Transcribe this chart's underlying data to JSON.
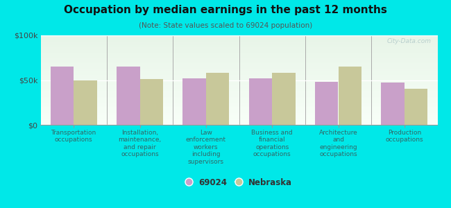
{
  "title": "Occupation by median earnings in the past 12 months",
  "subtitle": "(Note: State values scaled to 69024 population)",
  "categories": [
    "Transportation\noccupations",
    "Installation,\nmaintenance,\nand repair\noccupations",
    "Law\nenforcement\nworkers\nincluding\nsupervisors",
    "Business and\nfinancial\noperations\noccupations",
    "Architecture\nand\nengineering\noccupations",
    "Production\noccupations"
  ],
  "values_69024": [
    65000,
    65000,
    52000,
    52000,
    48000,
    47000
  ],
  "values_nebraska": [
    50000,
    51000,
    58000,
    58000,
    65000,
    40000
  ],
  "color_69024": "#c9a0c9",
  "color_nebraska": "#c8c89a",
  "ylim": [
    0,
    100000
  ],
  "ytick_labels": [
    "$0",
    "$50k",
    "$100k"
  ],
  "background_color": "#00e8e8",
  "legend_label_69024": "69024",
  "legend_label_nebraska": "Nebraska",
  "bar_width": 0.35,
  "title_color": "#111111",
  "subtitle_color": "#555555",
  "xlabel_color": "#336666",
  "watermark": "City-Data.com"
}
